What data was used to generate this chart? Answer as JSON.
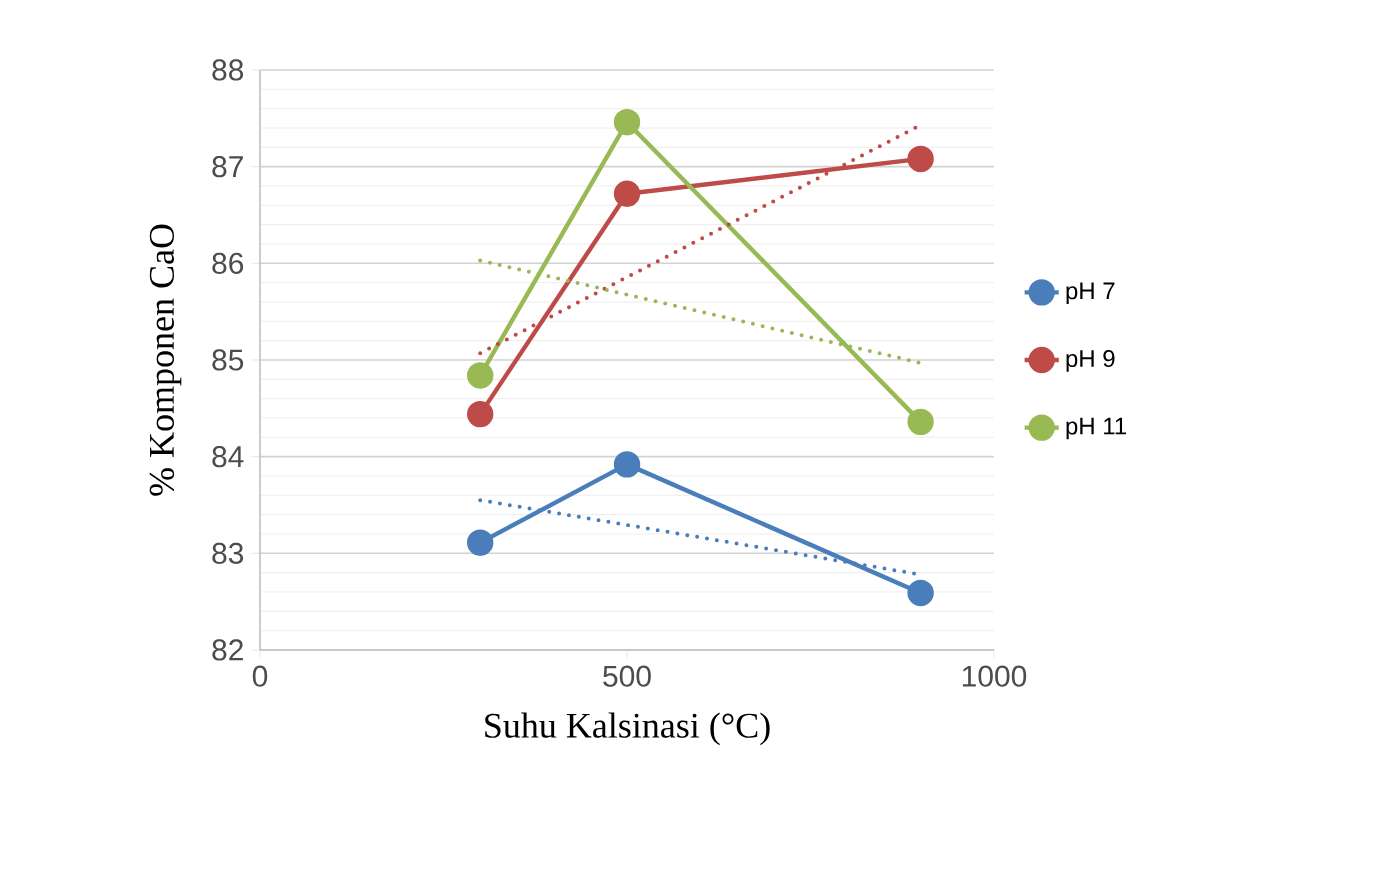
{
  "chart_data": {
    "type": "line",
    "xlabel": "Suhu Kalsinasi (°C)",
    "ylabel": "% Komponen CaO",
    "xlim": [
      0,
      1000
    ],
    "xticks": [
      0,
      500,
      1000
    ],
    "ylim": [
      82,
      88
    ],
    "yticks": [
      82,
      83,
      84,
      85,
      86,
      87,
      88
    ],
    "grid": "y",
    "legend": "right",
    "marker": "circle",
    "line_style": "solid",
    "series": [
      {
        "name": "pH 7",
        "color": "#4a7ebb",
        "x": [
          300,
          500,
          900
        ],
        "values": [
          83.11,
          83.92,
          82.59
        ]
      },
      {
        "name": "pH 9",
        "color": "#be4b48",
        "x": [
          300,
          500,
          900
        ],
        "values": [
          84.44,
          86.72,
          87.08
        ]
      },
      {
        "name": "pH 11",
        "color": "#98b954",
        "x": [
          300,
          500,
          900
        ],
        "values": [
          84.84,
          87.46,
          84.36
        ]
      },
      {
        "color": "#4a7ebb",
        "x": [
          300,
          900
        ],
        "values": [
          83.55,
          82.78
        ],
        "line_style": "dotted",
        "marker": "none"
      },
      {
        "color": "#be4b48",
        "x": [
          300,
          900
        ],
        "values": [
          85.07,
          87.43
        ],
        "line_style": "dotted",
        "marker": "none"
      },
      {
        "color": "#98b954",
        "x": [
          300,
          900
        ],
        "values": [
          86.03,
          84.97
        ],
        "line_style": "dotted",
        "marker": "none"
      }
    ]
  }
}
